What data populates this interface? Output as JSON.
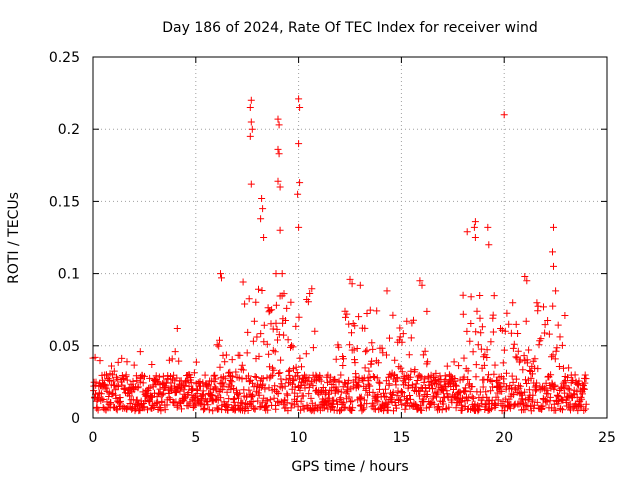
{
  "chart_data": {
    "type": "scatter",
    "title": "Day 186 of 2024, Rate Of TEC Index for receiver wind",
    "xlabel": "GPS time / hours",
    "ylabel": "ROTI / TECUs",
    "xlim": [
      0,
      25
    ],
    "ylim": [
      0,
      0.25
    ],
    "xticks": [
      "0",
      "5",
      "10",
      "15",
      "20",
      "25"
    ],
    "xtick_values": [
      0,
      5,
      10,
      15,
      20,
      25
    ],
    "yticks": [
      "0",
      "0.05",
      "0.1",
      "0.15",
      "0.2",
      "0.25"
    ],
    "ytick_values": [
      0,
      0.05,
      0.1,
      0.15,
      0.2,
      0.25
    ],
    "grid": true,
    "marker": "+",
    "series_color": "#ff0000",
    "x_range_hours": [
      0,
      24
    ],
    "typical_band": [
      0.005,
      0.03
    ],
    "spikes": [
      {
        "x": 7.7,
        "y": 0.22
      },
      {
        "x": 7.65,
        "y": 0.215
      },
      {
        "x": 7.7,
        "y": 0.205
      },
      {
        "x": 7.75,
        "y": 0.2
      },
      {
        "x": 7.65,
        "y": 0.195
      },
      {
        "x": 7.7,
        "y": 0.162
      },
      {
        "x": 8.2,
        "y": 0.152
      },
      {
        "x": 8.25,
        "y": 0.145
      },
      {
        "x": 8.15,
        "y": 0.138
      },
      {
        "x": 8.3,
        "y": 0.125
      },
      {
        "x": 9.0,
        "y": 0.207
      },
      {
        "x": 9.05,
        "y": 0.203
      },
      {
        "x": 9.0,
        "y": 0.186
      },
      {
        "x": 9.05,
        "y": 0.183
      },
      {
        "x": 9.0,
        "y": 0.164
      },
      {
        "x": 9.1,
        "y": 0.16
      },
      {
        "x": 9.1,
        "y": 0.13
      },
      {
        "x": 10.0,
        "y": 0.221
      },
      {
        "x": 10.05,
        "y": 0.215
      },
      {
        "x": 10.0,
        "y": 0.19
      },
      {
        "x": 10.05,
        "y": 0.163
      },
      {
        "x": 9.95,
        "y": 0.155
      },
      {
        "x": 10.0,
        "y": 0.132
      },
      {
        "x": 20.0,
        "y": 0.21
      },
      {
        "x": 18.2,
        "y": 0.129
      },
      {
        "x": 18.6,
        "y": 0.136
      },
      {
        "x": 18.55,
        "y": 0.132
      },
      {
        "x": 18.6,
        "y": 0.125
      },
      {
        "x": 19.2,
        "y": 0.132
      },
      {
        "x": 19.25,
        "y": 0.12
      },
      {
        "x": 22.4,
        "y": 0.132
      },
      {
        "x": 22.35,
        "y": 0.115
      },
      {
        "x": 22.4,
        "y": 0.105
      },
      {
        "x": 4.1,
        "y": 0.062
      },
      {
        "x": 6.2,
        "y": 0.1
      },
      {
        "x": 6.25,
        "y": 0.097
      },
      {
        "x": 8.9,
        "y": 0.1
      },
      {
        "x": 9.2,
        "y": 0.1
      },
      {
        "x": 12.5,
        "y": 0.096
      },
      {
        "x": 12.6,
        "y": 0.093
      },
      {
        "x": 13.0,
        "y": 0.092
      },
      {
        "x": 14.3,
        "y": 0.088
      },
      {
        "x": 15.9,
        "y": 0.095
      },
      {
        "x": 16.0,
        "y": 0.092
      },
      {
        "x": 21.0,
        "y": 0.098
      },
      {
        "x": 21.1,
        "y": 0.095
      },
      {
        "x": 18.0,
        "y": 0.085
      },
      {
        "x": 22.5,
        "y": 0.088
      },
      {
        "x": 2.3,
        "y": 0.046
      },
      {
        "x": 4.0,
        "y": 0.046
      },
      {
        "x": 0.1,
        "y": 0.042
      }
    ],
    "active_windows": [
      {
        "start": 7.3,
        "end": 10.8,
        "peak": 0.09
      },
      {
        "start": 11.8,
        "end": 16.3,
        "peak": 0.07
      },
      {
        "start": 17.9,
        "end": 19.6,
        "peak": 0.08
      },
      {
        "start": 19.8,
        "end": 23.0,
        "peak": 0.075
      },
      {
        "start": 6.0,
        "end": 7.3,
        "peak": 0.05
      }
    ]
  }
}
